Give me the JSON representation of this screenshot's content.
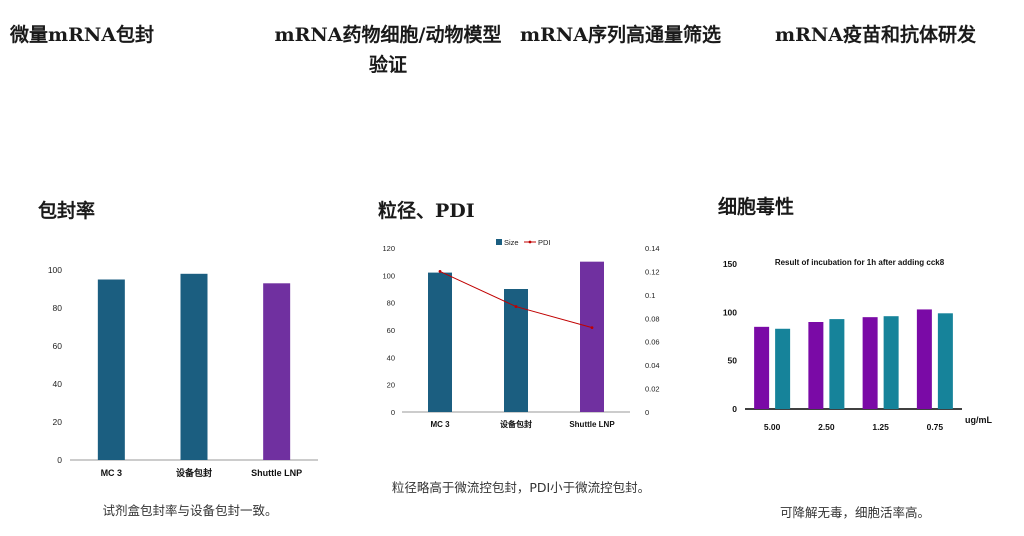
{
  "header": {
    "items": [
      "微量mRNA包封",
      "mRNA药物细胞/动物模型验证",
      "mRNA序列高通量筛选",
      "mRNA疫苗和抗体研发"
    ]
  },
  "panels": [
    {
      "title": "包封率",
      "caption": "试剂盒包封率与设备包封一致。"
    },
    {
      "title": "粒径、PDI",
      "caption": "粒径略高于微流控包封，PDI小于微流控包封。"
    },
    {
      "title": "细胞毒性",
      "caption": "可降解无毒，细胞活率高。"
    }
  ],
  "chart_data": [
    {
      "type": "bar",
      "title": "",
      "categories": [
        "MC 3",
        "设备包封",
        "Shuttle LNP"
      ],
      "values": [
        95,
        98,
        93
      ],
      "bar_colors": [
        "#1b5e80",
        "#1b5e80",
        "#7030a0"
      ],
      "ylim": [
        0,
        100
      ],
      "yticks": [
        0,
        20,
        40,
        60,
        80,
        100
      ],
      "grid": false
    },
    {
      "type": "bar",
      "title": "",
      "categories": [
        "MC 3",
        "设备包封",
        "Shuttle LNP"
      ],
      "series": [
        {
          "name": "Size",
          "values": [
            102,
            90,
            110
          ],
          "color": "#1b5e80"
        },
        {
          "name": "PDI",
          "type": "line",
          "axis": "right",
          "values": [
            0.12,
            0.09,
            0.072
          ],
          "color": "#c00000"
        }
      ],
      "bar_colors": [
        "#1b5e80",
        "#1b5e80",
        "#7030a0"
      ],
      "ylim": [
        0,
        120
      ],
      "yticks": [
        0,
        20,
        40,
        60,
        80,
        100,
        120
      ],
      "y2lim": [
        0,
        0.14
      ],
      "y2ticks": [
        "0",
        "0.02",
        "0.04",
        "0.06",
        "0.08",
        "0.1",
        "0.12",
        "0.14"
      ],
      "legend": "top-center",
      "grid": false
    },
    {
      "type": "bar",
      "title": "Result of incubation for 1h after adding cck8",
      "xlabel": "ug/mL",
      "categories": [
        "5.00",
        "2.50",
        "1.25",
        "0.75"
      ],
      "series": [
        {
          "values": [
            85,
            90,
            95,
            103
          ],
          "color": "#7a0aa6"
        },
        {
          "values": [
            83,
            93,
            96,
            99
          ],
          "color": "#16839a"
        }
      ],
      "ylim": [
        0,
        150
      ],
      "yticks": [
        0,
        50,
        100,
        150
      ],
      "grid": false
    }
  ]
}
